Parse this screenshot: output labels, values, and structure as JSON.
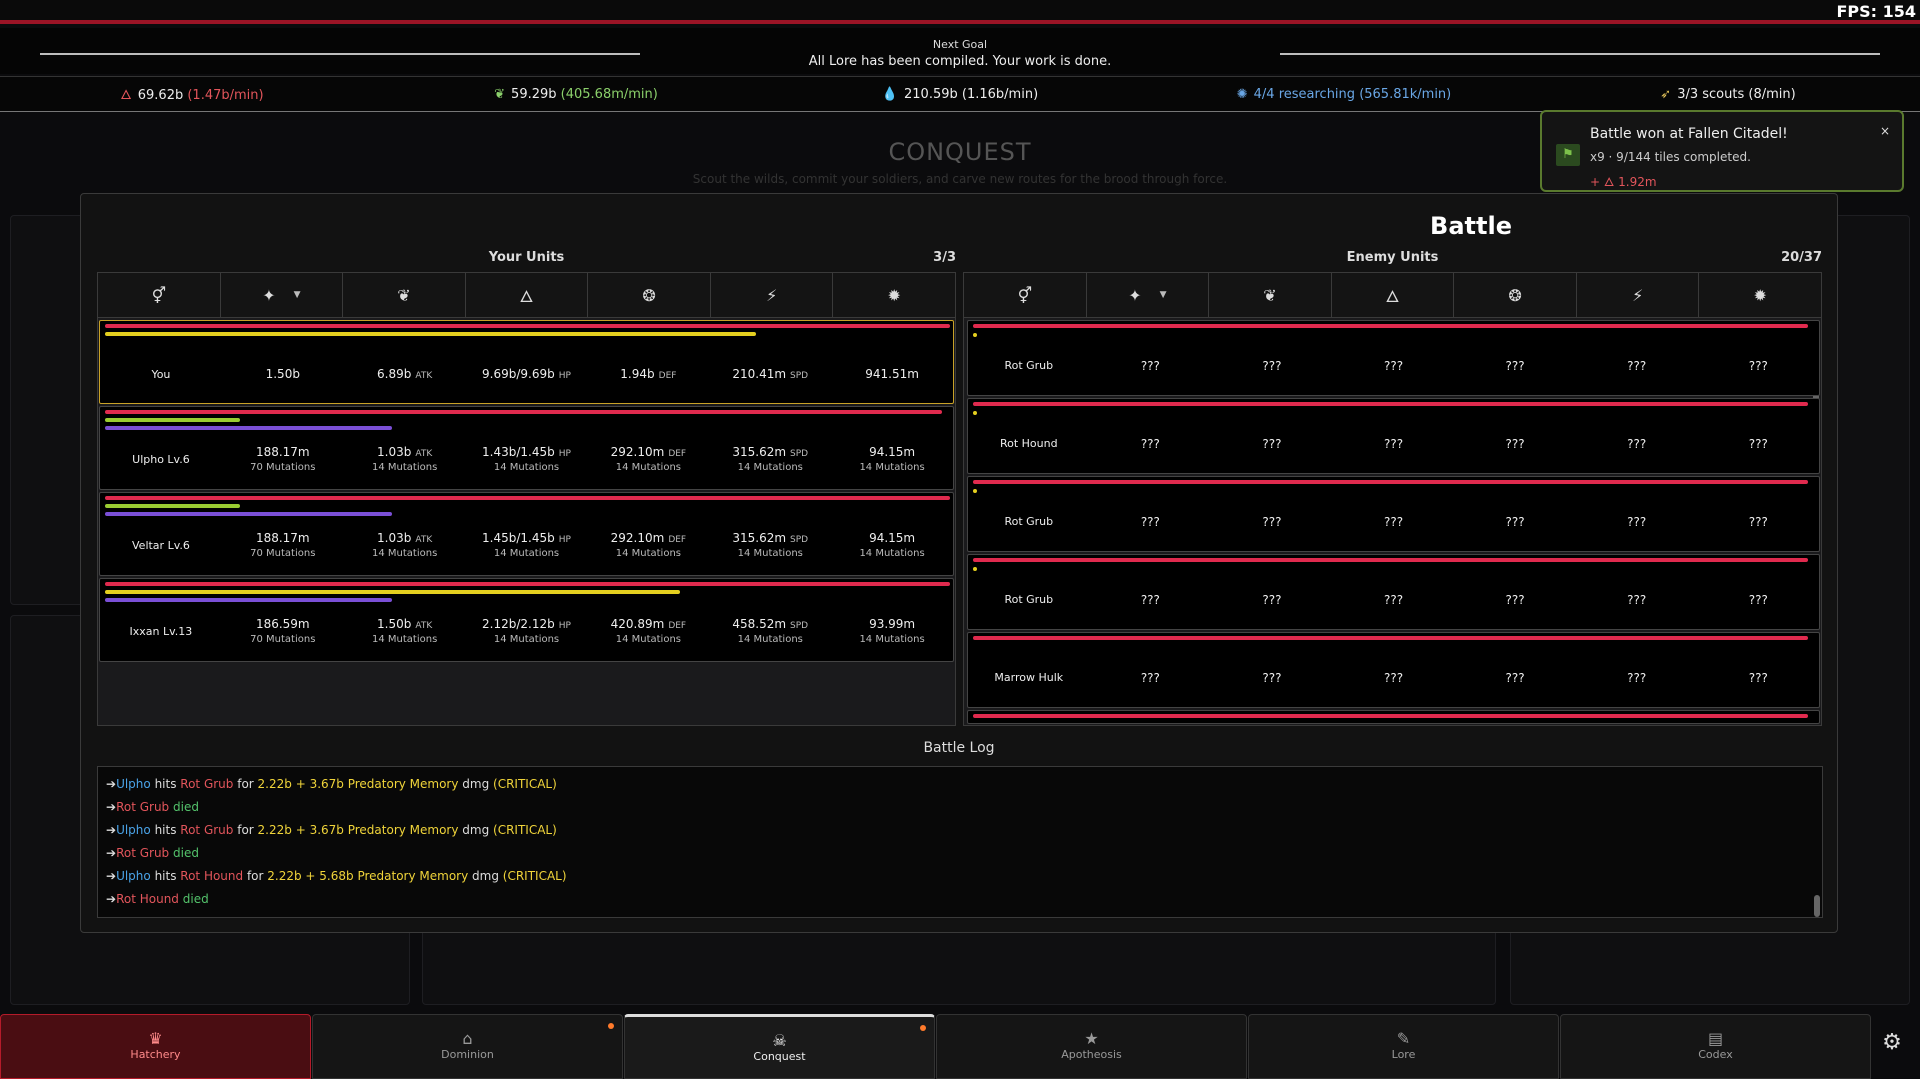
{
  "fps": "FPS: 154",
  "next_goal": {
    "label": "Next Goal",
    "text": "All Lore has been compiled. Your work is done."
  },
  "resources": [
    {
      "icon": "flame-icon",
      "glyph": "🜂",
      "amount": "69.62b",
      "rate": "(1.47b/min)",
      "color": "#e2555b"
    },
    {
      "icon": "leaf-icon",
      "glyph": "❦",
      "amount": "59.29b",
      "rate": "(405.68m/min)",
      "color": "#8bd06b"
    },
    {
      "icon": "drop-icon",
      "glyph": "💧",
      "amount": "210.59b",
      "rate": "(1.16b/min)",
      "color": "#eeeeee"
    },
    {
      "icon": "research-icon",
      "glyph": "✺",
      "amount": "4/4 researching",
      "rate": "(565.81k/min)",
      "color": "#6aa7e6"
    },
    {
      "icon": "scout-icon",
      "glyph": "➶",
      "amount": "3/3 scouts",
      "rate": "(8/min)",
      "color": "#e2c25a"
    }
  ],
  "background": {
    "title": "CONQUEST",
    "subtitle": "Scout the wilds, commit your soldiers, and carve new routes for the brood through force."
  },
  "toast": {
    "title": "Battle won at Fallen Citadel!",
    "subtitle": "x9 · 9/144 tiles completed.",
    "gain": "+ 🜂 1.92m",
    "close": "×"
  },
  "battle": {
    "title": "Battle",
    "your_units": {
      "label": "Your Units",
      "count": "3/3",
      "headers": [
        "⚥",
        "✦",
        "❦",
        "🜂",
        "❂",
        "⚡",
        "✹"
      ],
      "rows": [
        {
          "name": "You",
          "power": "1.50b",
          "atk": "6.89b",
          "hp": "9.69b/9.69b",
          "def": "1.94b",
          "spd": "210.41m",
          "extra": "941.51m",
          "hp_frac": 1.0,
          "atb_frac": 0.77,
          "mana_frac": null,
          "mutations": null
        },
        {
          "name": "Ulpho Lv.6",
          "power": "188.17m",
          "atk": "1.03b",
          "hp": "1.43b/1.45b",
          "def": "292.10m",
          "spd": "315.62m",
          "extra": "94.15m",
          "hp_frac": 0.99,
          "atb_frac": 0.16,
          "mana_frac": 0.34,
          "mutations": [
            "70 Mutations",
            "14 Mutations",
            "14 Mutations",
            "14 Mutations",
            "14 Mutations",
            "14 Mutations"
          ]
        },
        {
          "name": "Veltar Lv.6",
          "power": "188.17m",
          "atk": "1.03b",
          "hp": "1.45b/1.45b",
          "def": "292.10m",
          "spd": "315.62m",
          "extra": "94.15m",
          "hp_frac": 1.0,
          "atb_frac": 0.16,
          "mana_frac": 0.34,
          "mutations": [
            "70 Mutations",
            "14 Mutations",
            "14 Mutations",
            "14 Mutations",
            "14 Mutations",
            "14 Mutations"
          ]
        },
        {
          "name": "Ixxan Lv.13",
          "power": "186.59m",
          "atk": "1.50b",
          "hp": "2.12b/2.12b",
          "def": "420.89m",
          "spd": "458.52m",
          "extra": "93.99m",
          "hp_frac": 1.0,
          "atb_frac": 0.68,
          "mana_frac": 0.34,
          "mutations": [
            "70 Mutations",
            "14 Mutations",
            "14 Mutations",
            "14 Mutations",
            "14 Mutations",
            "14 Mutations"
          ]
        }
      ],
      "units": {
        "atk": "ATK",
        "hp": "HP",
        "def": "DEF",
        "spd": "SPD"
      }
    },
    "enemy_units": {
      "label": "Enemy Units",
      "count": "20/37",
      "headers": [
        "⚥",
        "✦",
        "❦",
        "🜂",
        "❂",
        "⚡",
        "✹"
      ],
      "rows": [
        {
          "name": "Rot Grub",
          "vals": [
            "???",
            "???",
            "???",
            "???",
            "???",
            "???"
          ],
          "hp_frac": 1.0,
          "ready": true
        },
        {
          "name": "Rot Hound",
          "vals": [
            "???",
            "???",
            "???",
            "???",
            "???",
            "???"
          ],
          "hp_frac": 1.0,
          "ready": true
        },
        {
          "name": "Rot Grub",
          "vals": [
            "???",
            "???",
            "???",
            "???",
            "???",
            "???"
          ],
          "hp_frac": 1.0,
          "ready": true
        },
        {
          "name": "Rot Grub",
          "vals": [
            "???",
            "???",
            "???",
            "???",
            "???",
            "???"
          ],
          "hp_frac": 1.0,
          "ready": true
        },
        {
          "name": "Marrow Hulk",
          "vals": [
            "???",
            "???",
            "???",
            "???",
            "???",
            "???"
          ],
          "hp_frac": 1.0,
          "ready": false
        }
      ]
    },
    "log": {
      "title": "Battle Log",
      "entries": [
        {
          "arrow": "➔",
          "actor": "Ulpho",
          "verb": " hits ",
          "target": "Rot Grub",
          "pre": " for ",
          "dmg": "2.22b + 3.67b Predatory Memory",
          "post": " dmg ",
          "crit": "(CRITICAL)"
        },
        {
          "arrow": "➔",
          "actor": "",
          "verb": "",
          "target": "Rot Grub",
          "pre": " ",
          "dmg": "",
          "post": "",
          "crit": "",
          "died": "died"
        },
        {
          "arrow": "➔",
          "actor": "Ulpho",
          "verb": " hits ",
          "target": "Rot Grub",
          "pre": " for ",
          "dmg": "2.22b + 3.67b Predatory Memory",
          "post": " dmg ",
          "crit": "(CRITICAL)"
        },
        {
          "arrow": "➔",
          "actor": "",
          "verb": "",
          "target": "Rot Grub",
          "pre": " ",
          "dmg": "",
          "post": "",
          "crit": "",
          "died": "died"
        },
        {
          "arrow": "➔",
          "actor": "Ulpho",
          "verb": " hits ",
          "target": "Rot Hound",
          "pre": " for ",
          "dmg": "2.22b + 5.68b Predatory Memory",
          "post": " dmg ",
          "crit": "(CRITICAL)"
        },
        {
          "arrow": "➔",
          "actor": "",
          "verb": "",
          "target": "Rot Hound",
          "pre": " ",
          "dmg": "",
          "post": "",
          "crit": "",
          "died": "died"
        }
      ]
    }
  },
  "nav": [
    {
      "label": "Hatchery",
      "icon": "crown-icon",
      "glyph": "♛",
      "state": "active",
      "notif": false
    },
    {
      "label": "Dominion",
      "icon": "home-icon",
      "glyph": "⌂",
      "state": "",
      "notif": true
    },
    {
      "label": "Conquest",
      "icon": "skull-icon",
      "glyph": "☠",
      "state": "current",
      "notif": true
    },
    {
      "label": "Apotheosis",
      "icon": "star-icon",
      "glyph": "★",
      "state": "",
      "notif": false
    },
    {
      "label": "Lore",
      "icon": "scroll-icon",
      "glyph": "✎",
      "state": "",
      "notif": false
    },
    {
      "label": "Codex",
      "icon": "book-icon",
      "glyph": "▤",
      "state": "",
      "notif": false
    }
  ],
  "settings_icon": "⚙",
  "colors": {
    "hp": "#e02a4e",
    "atb": "#e4cf1f",
    "mana": "#7a4fd6",
    "ally": "#4aa3e8",
    "enemy": "#e2555b"
  }
}
